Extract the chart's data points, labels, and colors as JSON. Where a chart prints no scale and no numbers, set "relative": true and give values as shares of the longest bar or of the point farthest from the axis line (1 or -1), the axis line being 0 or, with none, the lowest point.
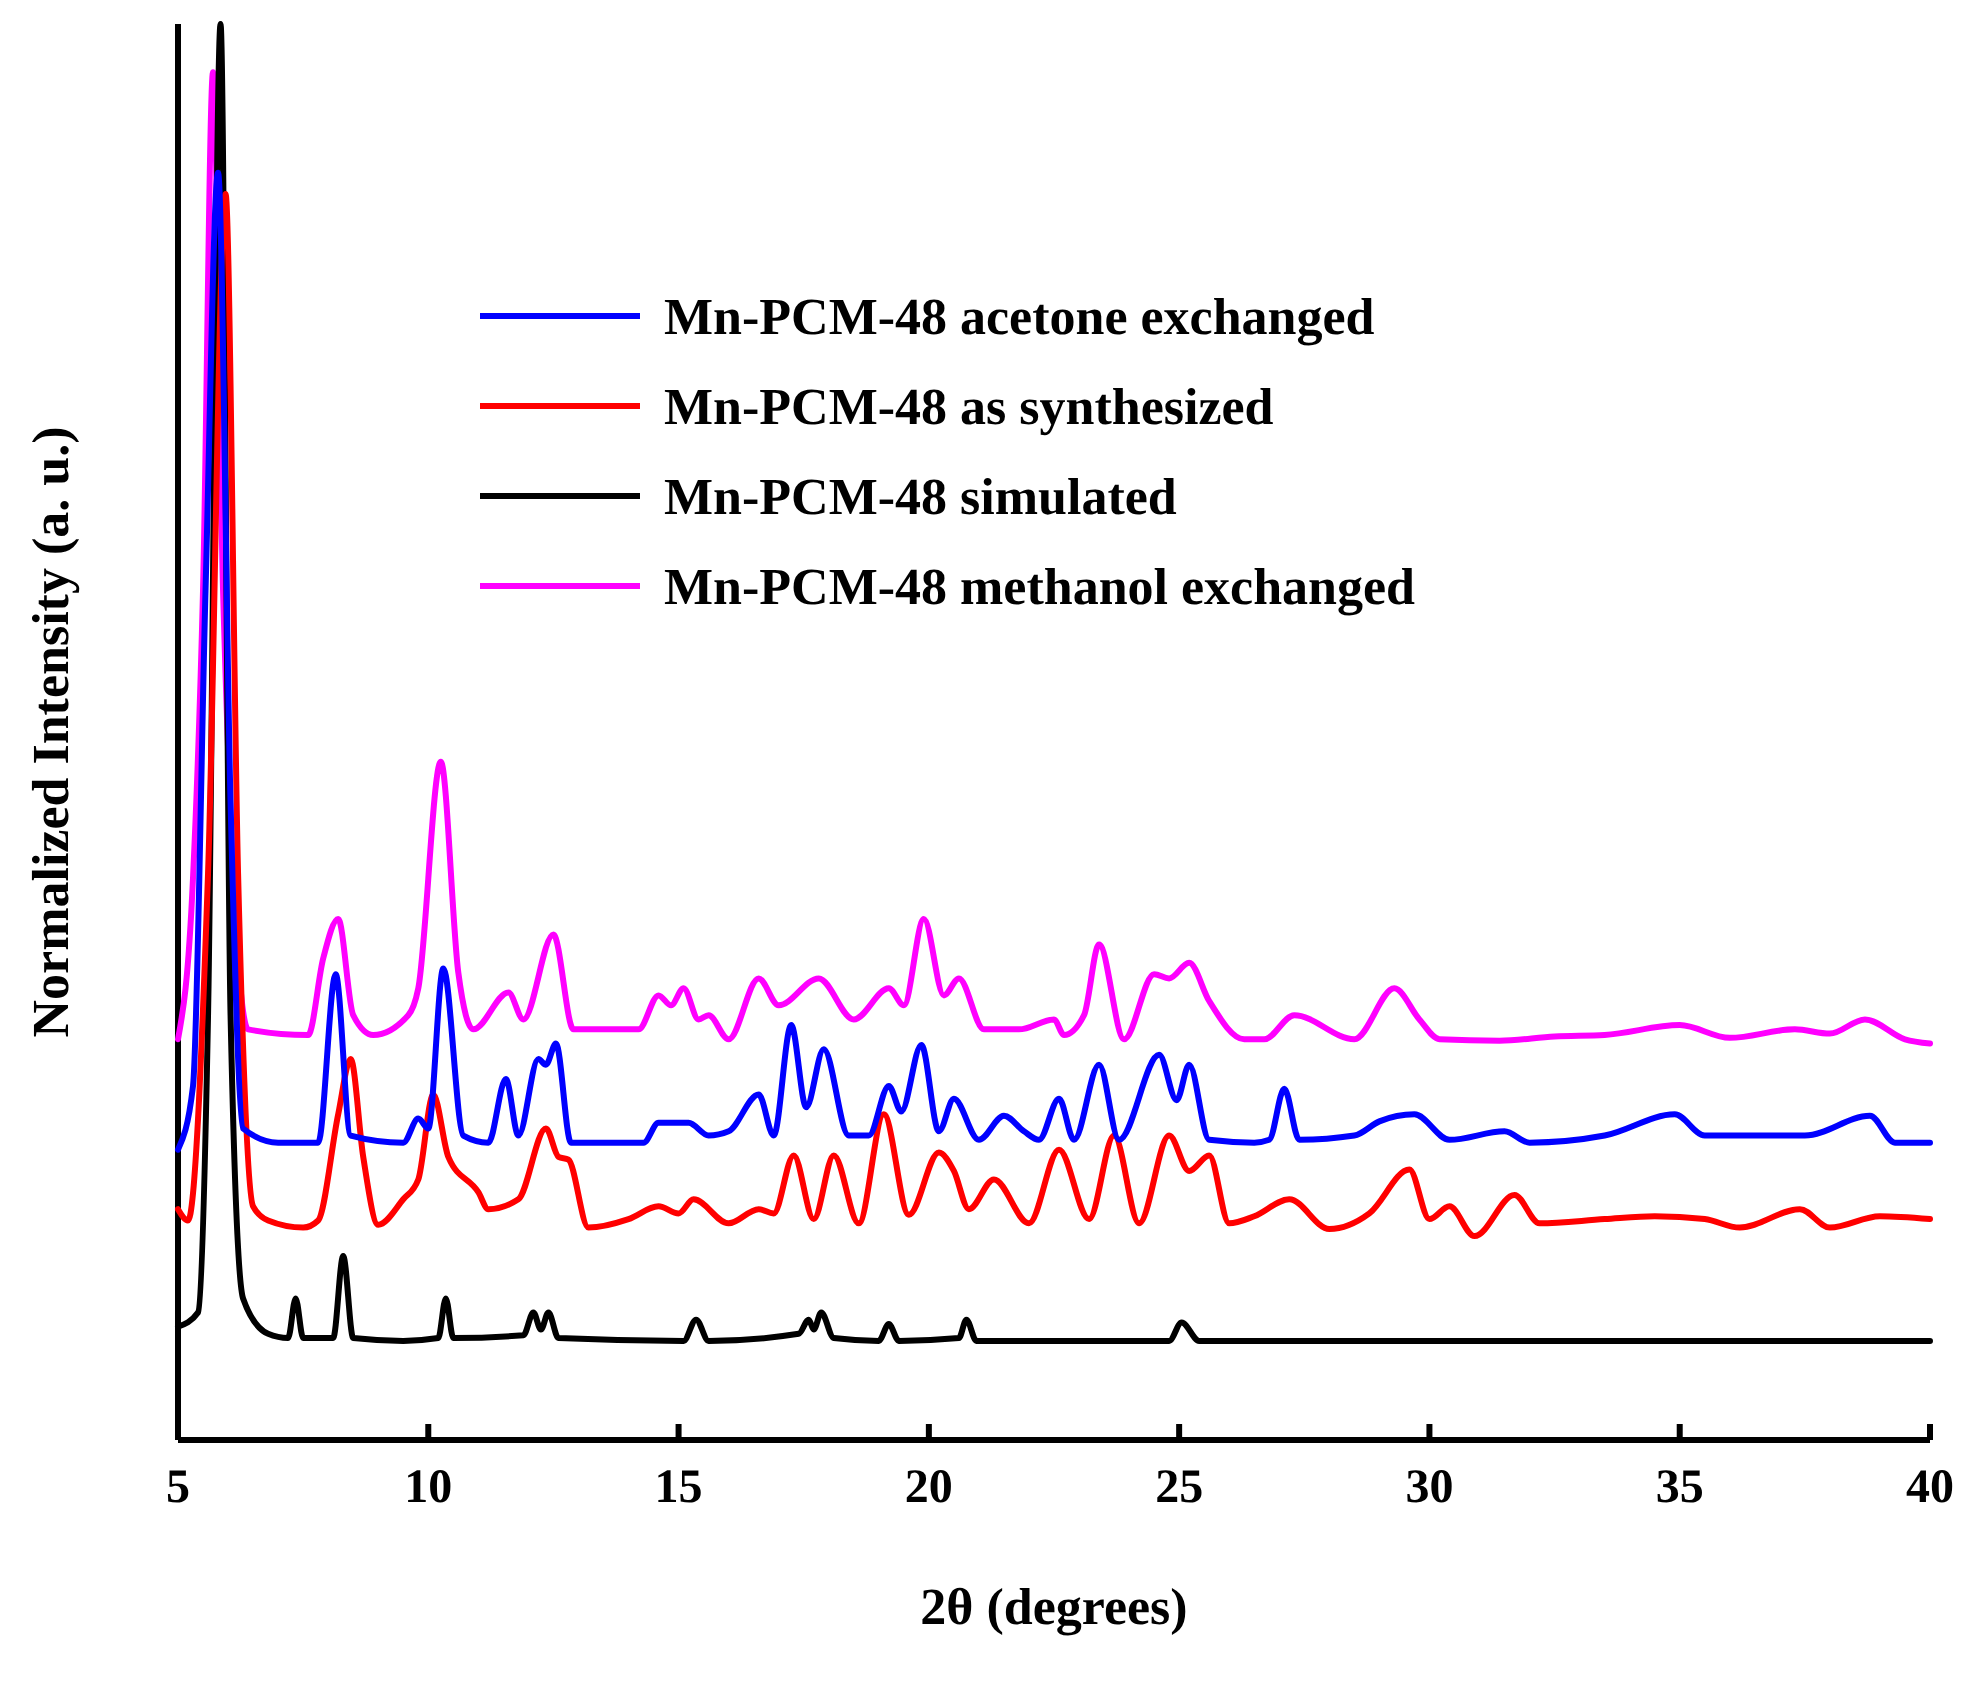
{
  "chart_data": {
    "type": "line",
    "xlabel": "2θ (degrees)",
    "ylabel": "Normalized Intensity (a. u.)",
    "relative": true,
    "xlim": [
      5,
      40
    ],
    "xticks": [
      5,
      10,
      15,
      20,
      25,
      30,
      35,
      40
    ],
    "legend": "top",
    "grid": false,
    "series": [
      {
        "name": "Mn-PCM-48 acetone exchanged",
        "color": "#0000ff",
        "x": [
          5,
          5.3,
          5.55,
          5.8,
          6.05,
          6.3,
          7,
          7.8,
          8.15,
          8.45,
          9.5,
          9.8,
          10.0,
          10.3,
          10.7,
          11.2,
          11.55,
          11.8,
          12.2,
          12.35,
          12.55,
          12.85,
          14.3,
          14.6,
          15.2,
          15.6,
          16.0,
          16.6,
          16.9,
          17.25,
          17.55,
          17.9,
          18.4,
          18.8,
          19.2,
          19.45,
          19.85,
          20.2,
          20.5,
          21.0,
          21.5,
          21.9,
          22.2,
          22.6,
          22.9,
          23.4,
          23.8,
          24.6,
          24.95,
          25.2,
          25.6,
          26.5,
          26.8,
          27.1,
          27.4,
          28.5,
          29.0,
          29.7,
          30.4,
          31.5,
          32,
          33.5,
          34.9,
          35.5,
          37.5,
          38.8,
          39.3,
          40
        ],
        "values": [
          0.205,
          0.25,
          0.6,
          0.895,
          0.45,
          0.22,
          0.21,
          0.21,
          0.329,
          0.215,
          0.21,
          0.227,
          0.22,
          0.333,
          0.215,
          0.21,
          0.255,
          0.215,
          0.269,
          0.265,
          0.28,
          0.21,
          0.21,
          0.224,
          0.224,
          0.215,
          0.218,
          0.244,
          0.215,
          0.293,
          0.235,
          0.276,
          0.215,
          0.215,
          0.25,
          0.232,
          0.279,
          0.218,
          0.241,
          0.212,
          0.229,
          0.218,
          0.212,
          0.241,
          0.212,
          0.265,
          0.212,
          0.272,
          0.24,
          0.265,
          0.212,
          0.21,
          0.212,
          0.248,
          0.212,
          0.215,
          0.225,
          0.23,
          0.212,
          0.218,
          0.21,
          0.215,
          0.23,
          0.215,
          0.215,
          0.229,
          0.21,
          0.21
        ]
      },
      {
        "name": "Mn-PCM-48 as synthesized",
        "color": "#ff0000",
        "x": [
          5,
          5.2,
          5.6,
          5.95,
          6.2,
          6.5,
          6.8,
          7.5,
          7.8,
          8.2,
          8.45,
          8.7,
          9.0,
          9.5,
          9.8,
          10.1,
          10.4,
          11.0,
          11.2,
          11.8,
          12.35,
          12.6,
          12.8,
          13.2,
          14.0,
          14.6,
          15.0,
          15.3,
          16,
          16.6,
          16.9,
          17.3,
          17.7,
          18.1,
          18.6,
          19.1,
          19.6,
          20.2,
          20.5,
          20.8,
          21.3,
          22.0,
          22.6,
          23.2,
          23.7,
          24.2,
          24.8,
          25.2,
          25.6,
          26.0,
          26.5,
          27.2,
          28,
          28.8,
          29.6,
          30.0,
          30.4,
          30.9,
          31.7,
          32.2,
          33.5,
          34.5,
          35.5,
          36.2,
          37.4,
          38,
          39,
          40
        ],
        "values": [
          0.163,
          0.155,
          0.4,
          0.88,
          0.4,
          0.165,
          0.155,
          0.15,
          0.155,
          0.23,
          0.269,
          0.2,
          0.152,
          0.17,
          0.184,
          0.244,
          0.2,
          0.175,
          0.163,
          0.17,
          0.22,
          0.2,
          0.198,
          0.15,
          0.156,
          0.165,
          0.16,
          0.17,
          0.153,
          0.163,
          0.16,
          0.201,
          0.156,
          0.201,
          0.153,
          0.23,
          0.159,
          0.203,
          0.19,
          0.163,
          0.184,
          0.153,
          0.205,
          0.156,
          0.215,
          0.153,
          0.215,
          0.19,
          0.201,
          0.153,
          0.158,
          0.17,
          0.149,
          0.16,
          0.191,
          0.156,
          0.165,
          0.144,
          0.173,
          0.153,
          0.156,
          0.158,
          0.156,
          0.15,
          0.163,
          0.15,
          0.158,
          0.156
        ]
      },
      {
        "name": "Mn-PCM-48 simulated",
        "color": "#000000",
        "x": [
          5,
          5.4,
          5.6,
          5.85,
          6.05,
          6.3,
          6.8,
          7.2,
          7.35,
          7.5,
          8.1,
          8.3,
          8.5,
          9.5,
          10.2,
          10.35,
          10.5,
          11.9,
          12.1,
          12.25,
          12.4,
          12.6,
          15.1,
          15.35,
          15.6,
          17.4,
          17.6,
          17.7,
          17.85,
          18.1,
          19,
          19.2,
          19.4,
          20.6,
          20.75,
          20.95,
          24.8,
          25.05,
          25.4,
          40
        ],
        "values": [
          0.08,
          0.09,
          0.3,
          1.0,
          0.3,
          0.1,
          0.075,
          0.072,
          0.1,
          0.072,
          0.072,
          0.13,
          0.072,
          0.07,
          0.072,
          0.1,
          0.072,
          0.074,
          0.09,
          0.078,
          0.09,
          0.072,
          0.07,
          0.085,
          0.07,
          0.075,
          0.085,
          0.078,
          0.09,
          0.072,
          0.07,
          0.082,
          0.07,
          0.072,
          0.085,
          0.07,
          0.07,
          0.083,
          0.07,
          0.07
        ]
      },
      {
        "name": "Mn-PCM-48 methanol exchanged",
        "color": "#ff00ff",
        "x": [
          5,
          5.3,
          5.5,
          5.7,
          5.9,
          6.4,
          7.6,
          7.9,
          8.2,
          8.5,
          8.9,
          9.6,
          9.8,
          10.25,
          10.6,
          10.9,
          11.6,
          11.9,
          12.5,
          12.9,
          14.2,
          14.6,
          14.85,
          15.1,
          15.4,
          15.6,
          16,
          16.6,
          17,
          17.8,
          18.5,
          19.2,
          19.5,
          19.9,
          20.3,
          20.6,
          21.1,
          21.8,
          22.5,
          22.7,
          23.1,
          23.4,
          23.9,
          24.5,
          24.8,
          25.2,
          25.6,
          26.3,
          26.7,
          27.3,
          28.5,
          29.3,
          29.8,
          30.2,
          31.4,
          32.5,
          33.5,
          35,
          36,
          37.3,
          38,
          38.7,
          39.5,
          40
        ],
        "values": [
          0.283,
          0.397,
          0.6,
          0.966,
          0.6,
          0.29,
          0.286,
          0.34,
          0.368,
          0.3,
          0.286,
          0.3,
          0.319,
          0.479,
          0.33,
          0.29,
          0.316,
          0.297,
          0.357,
          0.29,
          0.29,
          0.314,
          0.307,
          0.319,
          0.297,
          0.3,
          0.283,
          0.326,
          0.307,
          0.326,
          0.297,
          0.319,
          0.307,
          0.368,
          0.314,
          0.326,
          0.29,
          0.29,
          0.297,
          0.286,
          0.3,
          0.35,
          0.283,
          0.329,
          0.326,
          0.337,
          0.31,
          0.283,
          0.283,
          0.3,
          0.283,
          0.319,
          0.297,
          0.283,
          0.282,
          0.285,
          0.286,
          0.293,
          0.284,
          0.29,
          0.287,
          0.297,
          0.283,
          0.28
        ]
      }
    ]
  }
}
